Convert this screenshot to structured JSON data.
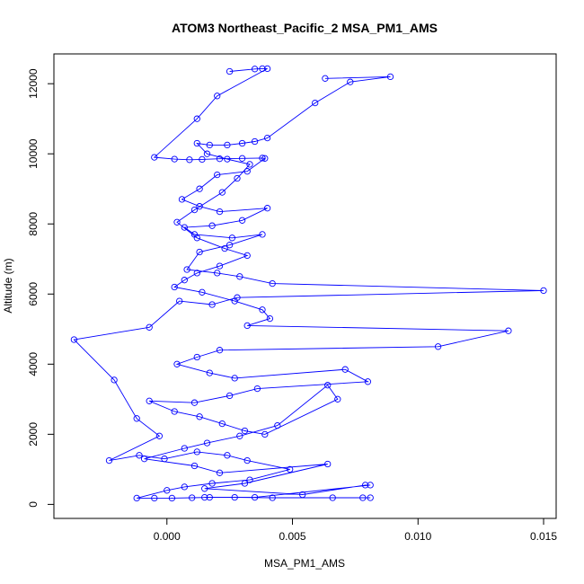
{
  "chart_data": {
    "type": "line",
    "title": "ATOM3 Northeast_Pacific_2 MSA_PM1_AMS",
    "xlabel": "MSA_PM1_AMS",
    "ylabel": "Altitude (m)",
    "xlim": [
      -0.0045,
      0.0155
    ],
    "ylim": [
      -400,
      12850
    ],
    "x_ticks": [
      0.0,
      0.005,
      0.01,
      0.015
    ],
    "x_tick_labels": [
      "0.000",
      "0.005",
      "0.010",
      "0.015"
    ],
    "y_ticks": [
      0,
      2000,
      4000,
      6000,
      8000,
      10000,
      12000
    ],
    "y_tick_labels": [
      "0",
      "2000",
      "4000",
      "6000",
      "8000",
      "10000",
      "12000"
    ],
    "grid": false,
    "colors": {
      "series": "#0000ff",
      "axes": "#000000",
      "background": "#ffffff"
    },
    "series": [
      {
        "marker": "open-circle",
        "points": [
          [
            0.0025,
            12350
          ],
          [
            0.0035,
            12420
          ],
          [
            0.0038,
            12430
          ],
          [
            0.004,
            12430
          ],
          [
            0.002,
            11650
          ],
          [
            0.0012,
            11000
          ],
          [
            -0.0005,
            9900
          ],
          [
            0.0003,
            9850
          ],
          [
            0.0009,
            9830
          ],
          [
            0.0014,
            9840
          ],
          [
            0.0021,
            9860
          ],
          [
            0.003,
            9870
          ],
          [
            0.0038,
            9880
          ],
          [
            0.0039,
            9870
          ],
          [
            0.0032,
            9500
          ],
          [
            0.002,
            9400
          ],
          [
            0.0013,
            9000
          ],
          [
            0.0006,
            8700
          ],
          [
            0.0013,
            8500
          ],
          [
            0.0021,
            8350
          ],
          [
            0.004,
            8450
          ],
          [
            0.003,
            8100
          ],
          [
            0.0018,
            7950
          ],
          [
            0.0007,
            7900
          ],
          [
            0.0011,
            7700
          ],
          [
            0.0026,
            7600
          ],
          [
            0.0038,
            7700
          ],
          [
            0.0025,
            7400
          ],
          [
            0.0013,
            7200
          ],
          [
            0.0008,
            6700
          ],
          [
            0.002,
            6600
          ],
          [
            0.0029,
            6500
          ],
          [
            0.0042,
            6300
          ],
          [
            0.015,
            6100
          ],
          [
            0.0028,
            5900
          ],
          [
            0.0018,
            5700
          ],
          [
            0.0005,
            5800
          ],
          [
            -0.0007,
            5050
          ],
          [
            -0.0037,
            4700
          ],
          [
            -0.0021,
            3550
          ],
          [
            -0.0012,
            2450
          ],
          [
            -0.0003,
            1950
          ],
          [
            -0.0023,
            1250
          ],
          [
            -0.0011,
            1400
          ],
          [
            -0.0001,
            1300
          ],
          [
            0.0012,
            1500
          ],
          [
            0.0024,
            1400
          ],
          [
            0.0032,
            1250
          ],
          [
            0.0049,
            1000
          ],
          [
            0.0033,
            700
          ],
          [
            0.0018,
            600
          ],
          [
            0.0007,
            500
          ],
          [
            0.0,
            400
          ],
          [
            -0.0012,
            180
          ],
          [
            -0.0005,
            180
          ],
          [
            0.0002,
            180
          ],
          [
            0.001,
            190
          ],
          [
            0.0017,
            200
          ],
          [
            0.0027,
            200
          ],
          [
            0.0042,
            190
          ],
          [
            0.0066,
            190
          ],
          [
            0.0078,
            190
          ],
          [
            0.0081,
            190
          ]
        ]
      },
      {
        "marker": "open-circle",
        "points": [
          [
            0.0063,
            12150
          ],
          [
            0.0089,
            12200
          ],
          [
            0.0073,
            12050
          ],
          [
            0.0059,
            11450
          ],
          [
            0.004,
            10450
          ],
          [
            0.0035,
            10350
          ],
          [
            0.003,
            10300
          ],
          [
            0.0024,
            10250
          ],
          [
            0.0017,
            10250
          ],
          [
            0.0012,
            10300
          ],
          [
            0.0016,
            10000
          ],
          [
            0.0024,
            9850
          ],
          [
            0.0033,
            9700
          ],
          [
            0.0028,
            9300
          ],
          [
            0.0022,
            8900
          ],
          [
            0.0011,
            8400
          ],
          [
            0.0004,
            8050
          ],
          [
            0.0012,
            7600
          ],
          [
            0.0023,
            7300
          ],
          [
            0.0032,
            7100
          ],
          [
            0.0021,
            6800
          ],
          [
            0.0012,
            6600
          ],
          [
            0.0007,
            6400
          ],
          [
            0.0003,
            6200
          ],
          [
            0.0014,
            6050
          ],
          [
            0.0027,
            5800
          ],
          [
            0.0038,
            5550
          ],
          [
            0.0041,
            5300
          ],
          [
            0.0032,
            5100
          ],
          [
            0.0136,
            4950
          ],
          [
            0.0108,
            4500
          ],
          [
            0.0021,
            4400
          ],
          [
            0.0012,
            4200
          ],
          [
            0.0004,
            4000
          ],
          [
            0.0017,
            3750
          ],
          [
            0.0027,
            3600
          ],
          [
            0.0071,
            3850
          ],
          [
            0.008,
            3500
          ],
          [
            0.0036,
            3300
          ],
          [
            0.0025,
            3100
          ],
          [
            0.0011,
            2900
          ],
          [
            -0.0007,
            2950
          ],
          [
            0.0003,
            2650
          ],
          [
            0.0013,
            2500
          ],
          [
            0.0022,
            2300
          ],
          [
            0.0031,
            2100
          ],
          [
            0.0039,
            2000
          ],
          [
            0.0068,
            3000
          ],
          [
            0.0064,
            3400
          ],
          [
            0.0044,
            2250
          ],
          [
            0.0029,
            1950
          ],
          [
            0.0016,
            1750
          ],
          [
            0.0007,
            1600
          ],
          [
            -0.0009,
            1300
          ],
          [
            0.0011,
            1100
          ],
          [
            0.0021,
            900
          ],
          [
            0.0064,
            1150
          ],
          [
            0.0031,
            600
          ],
          [
            0.0015,
            450
          ],
          [
            0.0054,
            280
          ],
          [
            0.0079,
            550
          ],
          [
            0.0081,
            550
          ],
          [
            0.0035,
            200
          ],
          [
            0.0015,
            200
          ]
        ]
      }
    ]
  }
}
